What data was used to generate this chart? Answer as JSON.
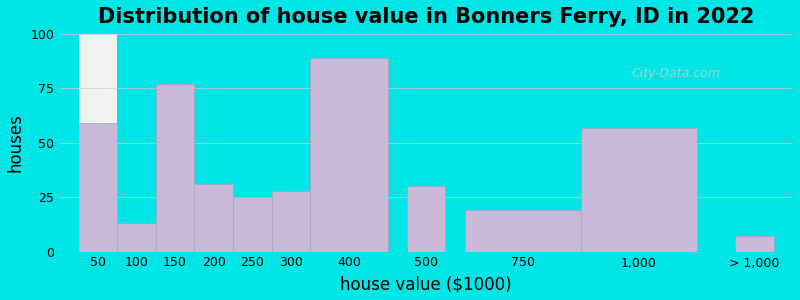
{
  "title": "Distribution of house value in Bonners Ferry, ID in 2022",
  "xlabel": "house value ($1000)",
  "ylabel": "houses",
  "bar_color": "#c9b8d8",
  "bar_edge_color": "#b0a0c8",
  "background_color": "#00e5e5",
  "plot_bg_gradient_left": "#e8f5e8",
  "plot_bg_gradient_right": "#f5f0f8",
  "ylim": [
    0,
    100
  ],
  "yticks": [
    0,
    25,
    50,
    75,
    100
  ],
  "categories": [
    "50",
    "100",
    "150",
    "200",
    "250",
    "300",
    "400",
    "500",
    "750",
    "1,000",
    "> 1,000"
  ],
  "values": [
    59,
    13,
    77,
    31,
    25,
    28,
    89,
    30,
    19,
    57,
    7
  ],
  "bar_widths": [
    1,
    1,
    1,
    1,
    1,
    1,
    2,
    1,
    3,
    3,
    1
  ],
  "watermark": "City-Data.com",
  "title_fontsize": 15,
  "axis_label_fontsize": 12
}
